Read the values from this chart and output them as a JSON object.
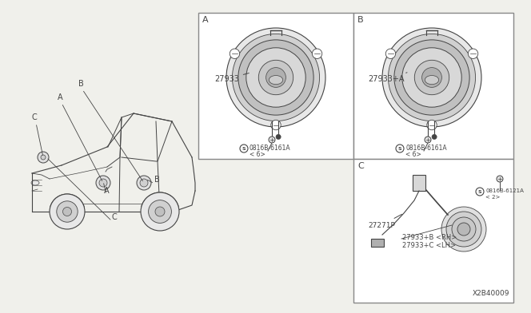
{
  "bg_color": "#f0f0eb",
  "white": "#ffffff",
  "line_color": "#444444",
  "border_color": "#888888",
  "diagram_ref": "X2B40009",
  "panel_A": {
    "label": "A",
    "part": "27933",
    "screw": "0816B-6161A",
    "screw_qty": "< 6>"
  },
  "panel_B": {
    "label": "B",
    "part": "27933+A",
    "screw": "0816B-6161A",
    "screw_qty": "< 6>"
  },
  "panel_C": {
    "label": "C",
    "part_RH": "27933+B <RH>",
    "part_LH": "27933+C <LH>",
    "harness": "27271P",
    "screw": "0816B-6121A",
    "screw_qty": "< 2>"
  }
}
